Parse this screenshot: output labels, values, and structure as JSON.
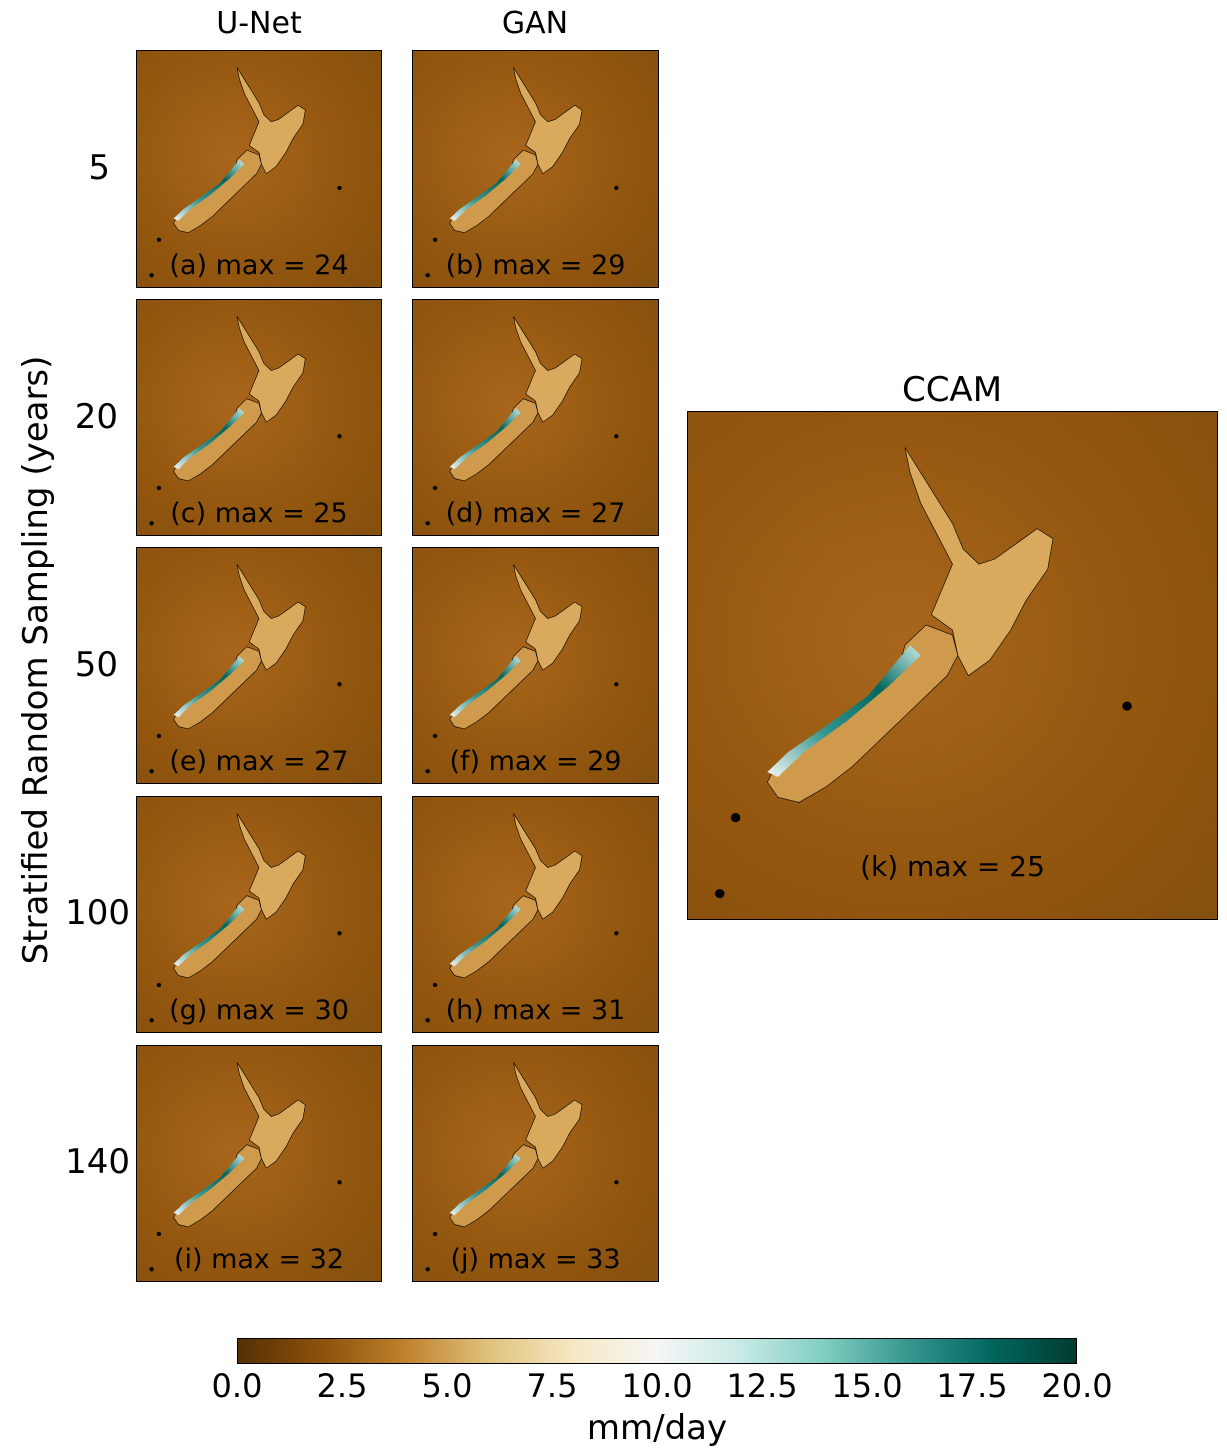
{
  "columns": [
    "U-Net",
    "GAN"
  ],
  "rows": [
    "5",
    "20",
    "50",
    "100",
    "140"
  ],
  "ylabel": "Stratified Random Sampling (years)",
  "panels": [
    {
      "label": "(a) max = 24",
      "max": 24,
      "model": "U-Net",
      "years": "5"
    },
    {
      "label": "(b) max = 29",
      "max": 29,
      "model": "GAN",
      "years": "5"
    },
    {
      "label": "(c) max = 25",
      "max": 25,
      "model": "U-Net",
      "years": "20"
    },
    {
      "label": "(d) max = 27",
      "max": 27,
      "model": "GAN",
      "years": "20"
    },
    {
      "label": "(e) max = 27",
      "max": 27,
      "model": "U-Net",
      "years": "50"
    },
    {
      "label": "(f) max = 29",
      "max": 29,
      "model": "GAN",
      "years": "50"
    },
    {
      "label": "(g) max = 30",
      "max": 30,
      "model": "U-Net",
      "years": "100"
    },
    {
      "label": "(h) max = 31",
      "max": 31,
      "model": "GAN",
      "years": "100"
    },
    {
      "label": "(i) max = 32",
      "max": 32,
      "model": "U-Net",
      "years": "140"
    },
    {
      "label": "(j) max = 33",
      "max": 33,
      "model": "GAN",
      "years": "140"
    }
  ],
  "reference": {
    "title": "CCAM",
    "label": "(k) max = 25",
    "max": 25
  },
  "colorbar": {
    "label": "mm/day",
    "ticks": [
      "0.0",
      "2.5",
      "5.0",
      "7.5",
      "10.0",
      "12.5",
      "15.0",
      "17.5",
      "20.0"
    ],
    "range": [
      0,
      20
    ],
    "colormap": "BrBG",
    "colors": [
      "#543005",
      "#8c510a",
      "#bf812d",
      "#dfc27d",
      "#f6e8c3",
      "#f5f5f5",
      "#c7eae5",
      "#80cdc1",
      "#35978f",
      "#01665e",
      "#003c30"
    ]
  },
  "chart_data": {
    "type": "heatmap",
    "title": "",
    "xlabel": "",
    "ylabel": "Stratified Random Sampling (years)",
    "columns": [
      "U-Net",
      "GAN",
      "CCAM"
    ],
    "rows": [
      "5",
      "20",
      "50",
      "100",
      "140"
    ],
    "panel_max_mm_per_day": {
      "U-Net": [
        24,
        25,
        27,
        30,
        32
      ],
      "GAN": [
        29,
        27,
        29,
        31,
        33
      ],
      "CCAM": 25
    },
    "colorbar_range": [
      0,
      20
    ],
    "colorbar_unit": "mm/day"
  }
}
